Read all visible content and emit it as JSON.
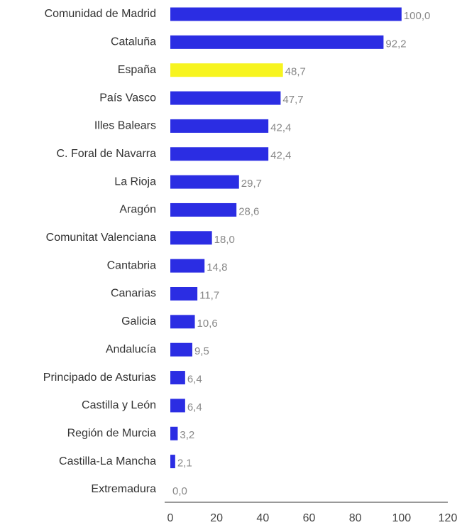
{
  "chart_data": {
    "type": "bar",
    "orientation": "horizontal",
    "categories": [
      "Comunidad de Madrid",
      "Cataluña",
      "España",
      "País Vasco",
      "Illes Balears",
      "C. Foral de Navarra",
      "La Rioja",
      "Aragón",
      "Comunitat Valenciana",
      "Cantabria",
      "Canarias",
      "Galicia",
      "Andalucía",
      "Principado de Asturias",
      "Castilla y León",
      "Región de Murcia",
      "Castilla-La Mancha",
      "Extremadura"
    ],
    "values": [
      100.0,
      92.2,
      48.7,
      47.7,
      42.4,
      42.4,
      29.7,
      28.6,
      18.0,
      14.8,
      11.7,
      10.6,
      9.5,
      6.4,
      6.4,
      3.2,
      2.1,
      0.0
    ],
    "value_labels": [
      "100,0",
      "92,2",
      "48,7",
      "47,7",
      "42,4",
      "42,4",
      "29,7",
      "28,6",
      "18,0",
      "14,8",
      "11,7",
      "10,6",
      "9,5",
      "6,4",
      "6,4",
      "3,2",
      "2,1",
      "0,0"
    ],
    "colors": [
      "#2b2de3",
      "#2b2de3",
      "#f7f41f",
      "#2b2de3",
      "#2b2de3",
      "#2b2de3",
      "#2b2de3",
      "#2b2de3",
      "#2b2de3",
      "#2b2de3",
      "#2b2de3",
      "#2b2de3",
      "#2b2de3",
      "#2b2de3",
      "#2b2de3",
      "#2b2de3",
      "#2b2de3",
      "#2b2de3"
    ],
    "xlim": [
      0,
      120
    ],
    "xticks": [
      0,
      20,
      40,
      60,
      80,
      100,
      120
    ],
    "grid": false
  }
}
